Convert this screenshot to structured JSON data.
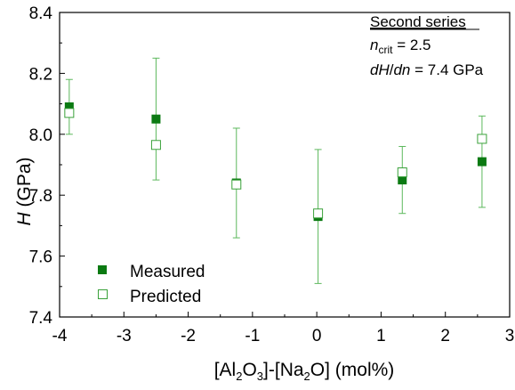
{
  "colors": {
    "measured": "#0b7a12",
    "predicted": "#3aa13a",
    "errorbar": "#5cb85c",
    "axis": "#000000"
  },
  "chart_data": {
    "type": "scatter",
    "xlabel": "[Al2O3]-[Na2O] (mol%)",
    "xlabel_parts": {
      "p1": "[Al",
      "s1": "2",
      "p2": "O",
      "s2": "3",
      "p3": "]-[Na",
      "s3": "2",
      "p4": "O] (mol%)"
    },
    "ylabel": "H (GPa)",
    "ylabel_parts": {
      "var": "H",
      "unit": " (GPa)"
    },
    "xlim": [
      -4,
      3
    ],
    "ylim": [
      7.4,
      8.4
    ],
    "xticks": [
      -4,
      -3,
      -2,
      -1,
      0,
      1,
      2,
      3
    ],
    "yticks": [
      7.4,
      7.6,
      7.8,
      8.0,
      8.2,
      8.4
    ],
    "xtick_labels": [
      "-4",
      "-3",
      "-2",
      "-1",
      "0",
      "1",
      "2",
      "3"
    ],
    "ytick_labels": [
      "7.4",
      "7.6",
      "7.8",
      "8.0",
      "8.2",
      "8.4"
    ],
    "grid": false,
    "legend_position": "bottom-left",
    "annotation": {
      "title": "Second series",
      "line2": {
        "var": "n",
        "sub": "crit",
        "rest": " = 2.5"
      },
      "line3": {
        "var": "dH",
        "slash": "/",
        "var2": "dn",
        "rest": " = 7.4 GPa"
      }
    },
    "series": [
      {
        "name": "Measured",
        "marker": "filled-square",
        "x": [
          -3.85,
          -2.5,
          -1.25,
          0.02,
          1.33,
          2.57
        ],
        "y": [
          8.09,
          8.05,
          7.84,
          7.73,
          7.85,
          7.91
        ],
        "err_low": [
          8.0,
          7.85,
          7.66,
          7.51,
          7.74,
          7.76
        ],
        "err_high": [
          8.18,
          8.25,
          8.02,
          7.95,
          7.96,
          8.06
        ]
      },
      {
        "name": "Predicted",
        "marker": "open-square",
        "x": [
          -3.85,
          -2.5,
          -1.25,
          0.02,
          1.33,
          2.57
        ],
        "y": [
          8.07,
          7.965,
          7.835,
          7.74,
          7.875,
          7.985
        ]
      }
    ]
  }
}
